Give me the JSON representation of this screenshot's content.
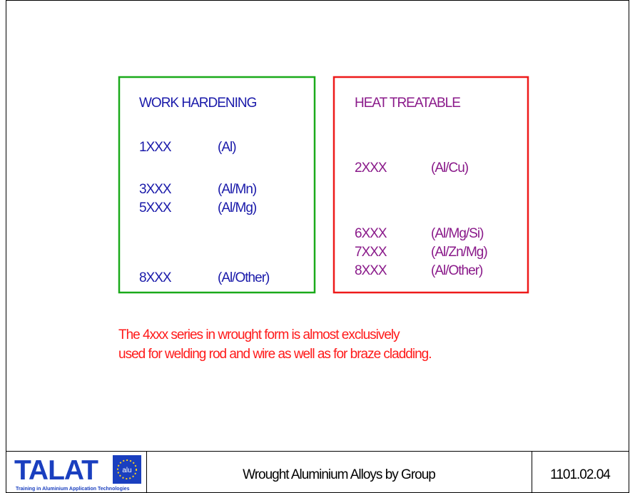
{
  "left_box": {
    "title": "WORK HARDENING",
    "rows": [
      {
        "code": "1XXX",
        "alloy": "(Al)"
      },
      {
        "code": "3XXX",
        "alloy": "(Al/Mn)"
      },
      {
        "code": "5XXX",
        "alloy": "(Al/Mg)"
      },
      {
        "code": "8XXX",
        "alloy": "(Al/Other)"
      }
    ]
  },
  "right_box": {
    "title": "HEAT TREATABLE",
    "rows": [
      {
        "code": "2XXX",
        "alloy": "(Al/Cu)"
      },
      {
        "code": "6XXX",
        "alloy": "(Al/Mg/Si)"
      },
      {
        "code": "7XXX",
        "alloy": "(Al/Zn/Mg)"
      },
      {
        "code": "8XXX",
        "alloy": "(Al/Other)"
      }
    ]
  },
  "note": [
    "The 4xxx series in wrought form is almost exclusively",
    "used for welding rod and wire as well as for braze cladding."
  ],
  "footer": {
    "logo": "TALAT",
    "logo_badge": "alu",
    "logo_subtitle": "Training in Aluminium Application Technologies",
    "title": "Wrought Aluminium Alloys by Group",
    "code": "1101.02.04"
  }
}
